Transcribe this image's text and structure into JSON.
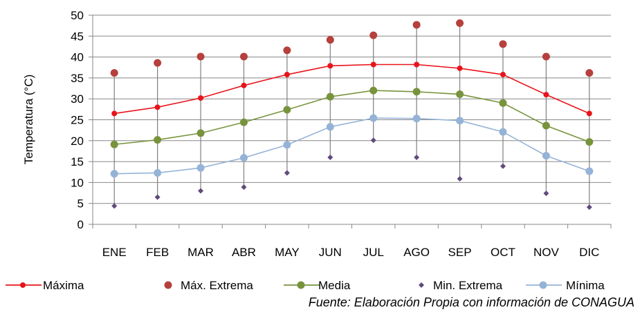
{
  "chart_data": {
    "type": "line",
    "categories": [
      "ENE",
      "FEB",
      "MAR",
      "ABR",
      "MAY",
      "JUN",
      "JUL",
      "AGO",
      "SEP",
      "OCT",
      "NOV",
      "DIC"
    ],
    "ylabel": "Temperatura (°C)",
    "xlabel": "",
    "ylim": [
      0,
      50
    ],
    "yticks": [
      0,
      5,
      10,
      15,
      20,
      25,
      30,
      35,
      40,
      45,
      50
    ],
    "grid": true,
    "legend_position": "bottom",
    "series": [
      {
        "name": "Máxima",
        "kind": "line",
        "color": "#e8141b",
        "values": [
          26.5,
          28,
          30.2,
          33.2,
          35.8,
          37.9,
          38.2,
          38.2,
          37.3,
          35.8,
          31,
          26.5
        ]
      },
      {
        "name": "Máx. Extrema",
        "kind": "points",
        "color": "#b5403c",
        "values": [
          36.2,
          38.6,
          40.1,
          40.1,
          41.6,
          44.1,
          45.2,
          47.7,
          48.1,
          43.1,
          40.1,
          36.2
        ]
      },
      {
        "name": "Media",
        "kind": "line",
        "color": "#77933c",
        "values": [
          19.1,
          20.2,
          21.8,
          24.4,
          27.4,
          30.5,
          32,
          31.7,
          31.1,
          29,
          23.6,
          19.7
        ]
      },
      {
        "name": "Min. Extrema",
        "kind": "points",
        "color": "#604a7b",
        "values": [
          4.4,
          6.5,
          8,
          8.9,
          12.3,
          16,
          20.1,
          16,
          10.9,
          13.9,
          7.4,
          4.1
        ]
      },
      {
        "name": "Mínima",
        "kind": "line",
        "color": "#95b3d7",
        "values": [
          12.1,
          12.3,
          13.5,
          15.9,
          19,
          23.3,
          25.4,
          25.3,
          24.8,
          22.1,
          16.4,
          12.7
        ]
      }
    ],
    "source": "Fuente: Elaboración Propia con información de CONAGUA"
  }
}
